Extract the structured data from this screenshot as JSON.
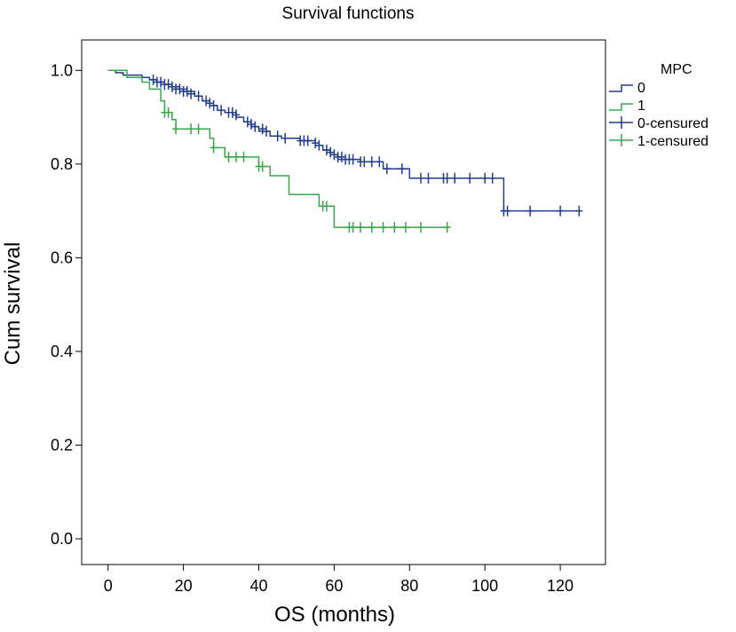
{
  "chart_data": {
    "type": "line",
    "title": "Survival functions",
    "xlabel": "OS (months)",
    "ylabel": "Cum survival",
    "xlim": [
      -7,
      132
    ],
    "ylim": [
      -0.055,
      1.065
    ],
    "x_ticks": [
      0,
      20,
      40,
      60,
      80,
      100,
      120
    ],
    "y_ticks": [
      0.0,
      0.2,
      0.4,
      0.6,
      0.8,
      1.0
    ],
    "x_tick_labels": [
      "0",
      "20",
      "40",
      "60",
      "80",
      "100",
      "120"
    ],
    "y_tick_labels": [
      "0.0",
      "0.2",
      "0.4",
      "0.6",
      "0.8",
      "1.0"
    ],
    "grid": false,
    "legend": {
      "title": "MPC",
      "placement": "right",
      "entries": [
        "0",
        "1",
        "0-censured",
        "1-censured"
      ]
    },
    "series": [
      {
        "name": "0",
        "color": "#1f3d8c",
        "steps": [
          [
            0,
            1.0
          ],
          [
            2,
            0.995
          ],
          [
            4,
            0.99
          ],
          [
            9,
            0.985
          ],
          [
            11,
            0.98
          ],
          [
            13,
            0.975
          ],
          [
            15,
            0.97
          ],
          [
            17,
            0.965
          ],
          [
            19,
            0.96
          ],
          [
            21,
            0.955
          ],
          [
            23,
            0.945
          ],
          [
            25,
            0.935
          ],
          [
            27,
            0.925
          ],
          [
            29,
            0.915
          ],
          [
            31,
            0.91
          ],
          [
            34,
            0.9
          ],
          [
            36,
            0.89
          ],
          [
            38,
            0.88
          ],
          [
            40,
            0.87
          ],
          [
            43,
            0.86
          ],
          [
            46,
            0.855
          ],
          [
            51,
            0.85
          ],
          [
            55,
            0.84
          ],
          [
            57,
            0.83
          ],
          [
            59,
            0.82
          ],
          [
            61,
            0.81
          ],
          [
            67,
            0.805
          ],
          [
            73,
            0.79
          ],
          [
            80,
            0.77
          ],
          [
            105,
            0.7
          ],
          [
            125,
            0.7
          ]
        ],
        "censored": [
          [
            12,
            0.98
          ],
          [
            13,
            0.975
          ],
          [
            14,
            0.975
          ],
          [
            15,
            0.97
          ],
          [
            16,
            0.97
          ],
          [
            17,
            0.965
          ],
          [
            18,
            0.96
          ],
          [
            19,
            0.96
          ],
          [
            20,
            0.955
          ],
          [
            21,
            0.955
          ],
          [
            22,
            0.95
          ],
          [
            24,
            0.945
          ],
          [
            26,
            0.935
          ],
          [
            27,
            0.93
          ],
          [
            28,
            0.925
          ],
          [
            30,
            0.915
          ],
          [
            32,
            0.91
          ],
          [
            33,
            0.91
          ],
          [
            34,
            0.905
          ],
          [
            37,
            0.89
          ],
          [
            38,
            0.885
          ],
          [
            39,
            0.88
          ],
          [
            41,
            0.875
          ],
          [
            42,
            0.87
          ],
          [
            45,
            0.86
          ],
          [
            47,
            0.855
          ],
          [
            51,
            0.85
          ],
          [
            52,
            0.85
          ],
          [
            53,
            0.85
          ],
          [
            55,
            0.845
          ],
          [
            56,
            0.84
          ],
          [
            58,
            0.83
          ],
          [
            59,
            0.825
          ],
          [
            60,
            0.82
          ],
          [
            61,
            0.815
          ],
          [
            62,
            0.815
          ],
          [
            63,
            0.81
          ],
          [
            64,
            0.81
          ],
          [
            65,
            0.81
          ],
          [
            67,
            0.805
          ],
          [
            68,
            0.805
          ],
          [
            70,
            0.805
          ],
          [
            72,
            0.805
          ],
          [
            74,
            0.79
          ],
          [
            78,
            0.79
          ],
          [
            83,
            0.77
          ],
          [
            85,
            0.77
          ],
          [
            89,
            0.77
          ],
          [
            90,
            0.77
          ],
          [
            92,
            0.77
          ],
          [
            96,
            0.77
          ],
          [
            100,
            0.77
          ],
          [
            102,
            0.77
          ],
          [
            105,
            0.7
          ],
          [
            106,
            0.7
          ],
          [
            112,
            0.7
          ],
          [
            120,
            0.7
          ],
          [
            125,
            0.7
          ]
        ]
      },
      {
        "name": "1",
        "color": "#35a84a",
        "steps": [
          [
            0,
            1.0
          ],
          [
            5,
            0.985
          ],
          [
            9,
            0.975
          ],
          [
            11,
            0.96
          ],
          [
            14,
            0.935
          ],
          [
            15,
            0.91
          ],
          [
            17,
            0.895
          ],
          [
            18,
            0.875
          ],
          [
            27,
            0.855
          ],
          [
            28,
            0.835
          ],
          [
            31,
            0.815
          ],
          [
            40,
            0.795
          ],
          [
            43,
            0.775
          ],
          [
            48,
            0.735
          ],
          [
            56,
            0.71
          ],
          [
            60,
            0.665
          ],
          [
            90,
            0.665
          ]
        ],
        "censored": [
          [
            15,
            0.91
          ],
          [
            16,
            0.91
          ],
          [
            18,
            0.875
          ],
          [
            22,
            0.875
          ],
          [
            24,
            0.875
          ],
          [
            28,
            0.835
          ],
          [
            32,
            0.815
          ],
          [
            34,
            0.815
          ],
          [
            36,
            0.815
          ],
          [
            40,
            0.795
          ],
          [
            41,
            0.795
          ],
          [
            57,
            0.71
          ],
          [
            58,
            0.71
          ],
          [
            64,
            0.665
          ],
          [
            65,
            0.665
          ],
          [
            67,
            0.665
          ],
          [
            70,
            0.665
          ],
          [
            73,
            0.665
          ],
          [
            76,
            0.665
          ],
          [
            79,
            0.665
          ],
          [
            83,
            0.665
          ],
          [
            90,
            0.665
          ]
        ]
      }
    ]
  }
}
